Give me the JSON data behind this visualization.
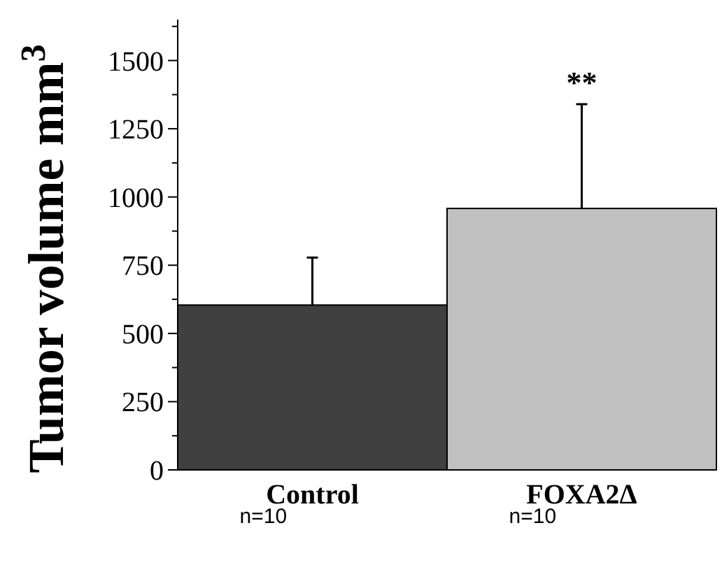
{
  "chart_data": {
    "type": "bar",
    "ylabel": "Tumor volume mm$^{3}$",
    "categories": [
      "Control",
      "FOXA2Δ"
    ],
    "values": [
      604,
      958
    ],
    "colors": [
      "#404040",
      "#c0c0c0"
    ],
    "errors": [
      [
        604,
        778
      ],
      [
        958,
        1340
      ]
    ],
    "ylim": [
      0,
      1650
    ],
    "yticks": [
      0,
      {
        "value": 125,
        "label": null
      },
      250,
      {
        "value": 375,
        "label": null
      },
      500,
      {
        "value": 625,
        "label": null
      },
      750,
      {
        "value": 875,
        "label": null
      },
      1000,
      {
        "value": 1125,
        "label": null
      },
      1250,
      {
        "value": 1375,
        "label": null
      },
      1500,
      {
        "value": 1625,
        "label": null
      }
    ],
    "grid": false,
    "annotations": [
      {
        "text": "**",
        "x": "FOXA2Δ",
        "y": 1340
      },
      "n=10",
      "n=10"
    ]
  }
}
